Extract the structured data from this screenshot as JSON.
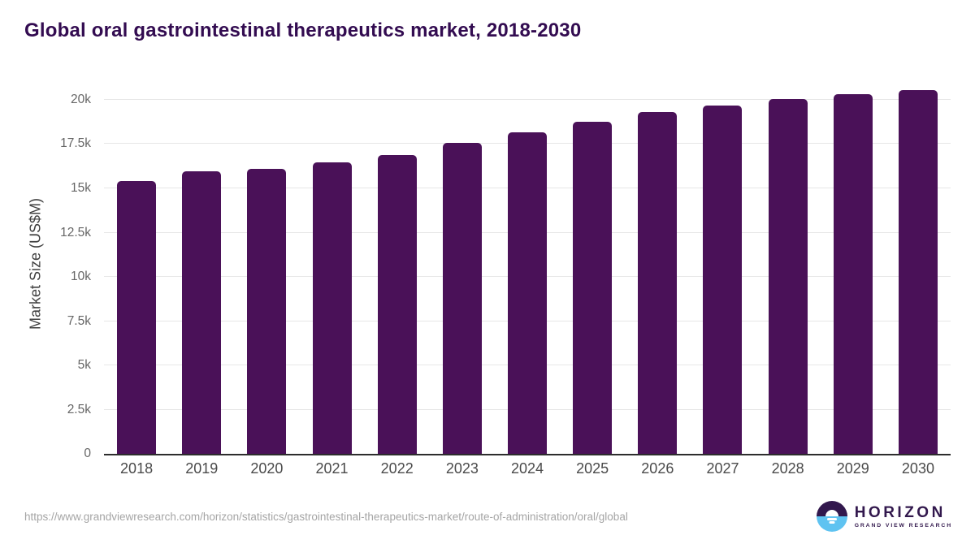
{
  "header": {
    "title": "Global oral gastrointestinal therapeutics market, 2018-2030"
  },
  "chart_data": {
    "type": "bar",
    "title": "Global oral gastrointestinal therapeutics market, 2018-2030",
    "xlabel": "",
    "ylabel": "Market Size (US$M)",
    "categories": [
      "2018",
      "2019",
      "2020",
      "2021",
      "2022",
      "2023",
      "2024",
      "2025",
      "2026",
      "2027",
      "2028",
      "2029",
      "2030"
    ],
    "values": [
      15400,
      15950,
      16100,
      16450,
      16900,
      17550,
      18150,
      18750,
      19300,
      19700,
      20050,
      20300,
      20550
    ],
    "ylim": [
      0,
      21100
    ],
    "ytick_values": [
      0,
      2500,
      5000,
      7500,
      10000,
      12500,
      15000,
      17500,
      20000
    ],
    "ytick_labels": [
      "0",
      "2.5k",
      "5k",
      "7.5k",
      "10k",
      "12.5k",
      "15k",
      "17.5k",
      "20k"
    ],
    "grid": true,
    "legend": false,
    "bar_color": "#4a1158"
  },
  "footer": {
    "source_url": "https://www.grandviewresearch.com/horizon/statistics/gastrointestinal-therapeutics-market/route-of-administration/oral/global",
    "logo": {
      "name": "HORIZON",
      "subtitle": "GRAND VIEW RESEARCH"
    }
  },
  "colors": {
    "bar": "#4a1158",
    "title_text": "#330c51",
    "axis_label_text": "#3f3f3f",
    "tick_text": "#666666",
    "x_label_text": "#4a4a4a",
    "gridline": "#e7e7e7",
    "baseline": "#2d2d2d",
    "source_text": "#a5a5a5",
    "logo_purple": "#32184d",
    "logo_blue": "#5fc3f1",
    "background": "#ffffff"
  }
}
